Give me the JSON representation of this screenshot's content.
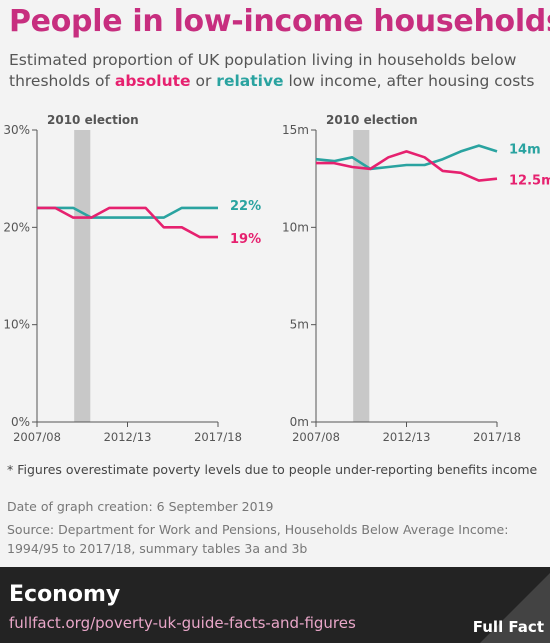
{
  "header": {
    "title": "People in low-income households",
    "subtitle_parts": [
      "Estimated proportion of UK population living in households below thresholds of ",
      "absolute",
      " or ",
      "relative",
      " low income, after housing costs"
    ]
  },
  "colors": {
    "absolute": "#e6216f",
    "relative": "#2aa3a0",
    "title": "#c72e7f",
    "band": "#c8c8c8"
  },
  "chart_data": [
    {
      "type": "line",
      "annotation": "2010 election",
      "x": [
        "2007/08",
        "2008/09",
        "2009/10",
        "2010/11",
        "2011/12",
        "2012/13",
        "2013/14",
        "2014/15",
        "2015/16",
        "2016/17",
        "2017/18"
      ],
      "xticks": [
        "2007/08",
        "2012/13",
        "2017/18"
      ],
      "yticks": [
        "0%",
        "10%",
        "20%",
        "30%"
      ],
      "ylim": [
        0,
        30
      ],
      "highlight_band": [
        "2009/10",
        "2010/11"
      ],
      "series": [
        {
          "name": "relative",
          "color": "#2aa3a0",
          "values": [
            22,
            22,
            22,
            21,
            21,
            21,
            21,
            21,
            22,
            22,
            22
          ],
          "end_label": "22%"
        },
        {
          "name": "absolute",
          "color": "#e6216f",
          "values": [
            22,
            22,
            21,
            21,
            22,
            22,
            22,
            20,
            20,
            19,
            19
          ],
          "end_label": "19%"
        }
      ]
    },
    {
      "type": "line",
      "annotation": "2010 election",
      "x": [
        "2007/08",
        "2008/09",
        "2009/10",
        "2010/11",
        "2011/12",
        "2012/13",
        "2013/14",
        "2014/15",
        "2015/16",
        "2016/17",
        "2017/18"
      ],
      "xticks": [
        "2007/08",
        "2012/13",
        "2017/18"
      ],
      "yticks": [
        "0m",
        "5m",
        "10m",
        "15m"
      ],
      "ylim": [
        0,
        15
      ],
      "highlight_band": [
        "2009/10",
        "2010/11"
      ],
      "series": [
        {
          "name": "relative",
          "color": "#2aa3a0",
          "values": [
            13.5,
            13.4,
            13.6,
            13.0,
            13.1,
            13.2,
            13.2,
            13.5,
            13.9,
            14.2,
            13.9
          ],
          "end_label": "14m"
        },
        {
          "name": "absolute",
          "color": "#e6216f",
          "values": [
            13.3,
            13.3,
            13.1,
            13.0,
            13.6,
            13.9,
            13.6,
            12.9,
            12.8,
            12.4,
            12.5
          ],
          "end_label": "12.5m"
        }
      ]
    }
  ],
  "footnote": "* Figures overestimate poverty levels due to people under-reporting benefits income",
  "created": "Date of graph creation: 6 September 2019",
  "source": "Source: Department for Work and Pensions, Households Below Average Income: 1994/95 to 2017/18, summary tables 3a and 3b",
  "footer": {
    "topic": "Economy",
    "url": "fullfact.org/poverty-uk-guide-facts-and-figures",
    "brand": "Full Fact"
  }
}
